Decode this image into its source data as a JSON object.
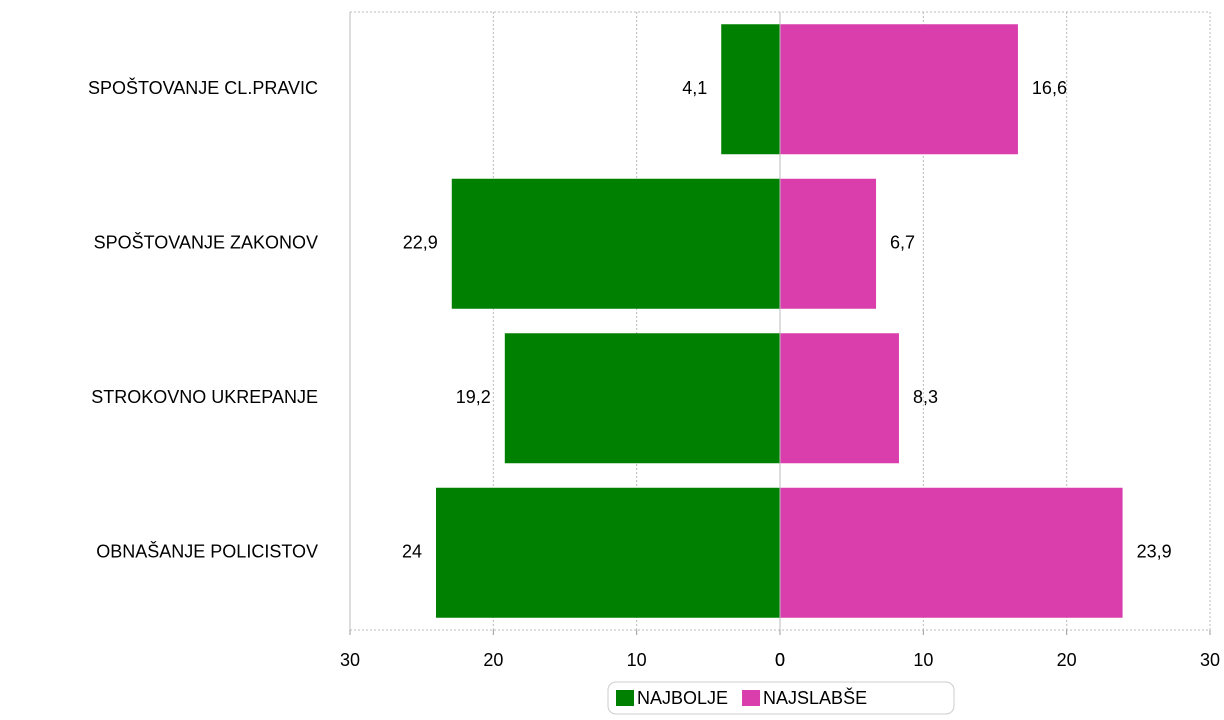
{
  "chart_data": {
    "type": "butterfly-bar",
    "categories": [
      "SPOŠTOVANJE CL.PRAVIC",
      "SPOŠTOVANJE ZAKONOV",
      "STROKOVNO UKREPANJE",
      "OBNAŠANJE POLICISTOV"
    ],
    "series": [
      {
        "name": "NAJBOLJE",
        "color": "#008000",
        "values": [
          4.1,
          22.9,
          19.2,
          24
        ],
        "value_labels": [
          "4,1",
          "22,9",
          "19,2",
          "24"
        ],
        "xlim": [
          30,
          0
        ],
        "xticks": [
          30,
          20,
          10,
          0
        ]
      },
      {
        "name": "NAJSLABŠE",
        "color": "#d93eac",
        "values": [
          16.6,
          6.7,
          8.3,
          23.9
        ],
        "value_labels": [
          "16,6",
          "6,7",
          "8,3",
          "23,9"
        ],
        "xlim": [
          0,
          30
        ],
        "xticks": [
          0,
          10,
          20,
          30
        ]
      }
    ],
    "grid": true,
    "legend": "bottom"
  }
}
